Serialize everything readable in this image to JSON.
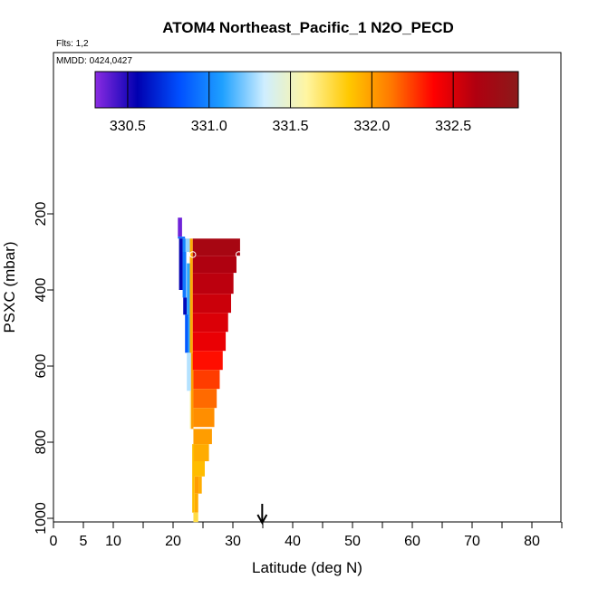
{
  "chart_data": {
    "type": "heatmap",
    "title": "ATOM4 Northeast_Pacific_1 N2O_PECD",
    "flights_text": "Flts: 1,2",
    "mmdd_text": "MMDD: 0424,0427",
    "xlabel": "Latitude (deg N)",
    "ylabel": "PSXC (mbar)",
    "xlim": [
      0,
      85
    ],
    "ylim_inverted": [
      1010,
      50
    ],
    "x_tick_labels": [
      {
        "value": 0,
        "label": "0"
      },
      {
        "value": 5,
        "label": "5"
      },
      {
        "value": 10,
        "label": "10"
      },
      {
        "value": 20,
        "label": "20"
      },
      {
        "value": 30,
        "label": "30"
      },
      {
        "value": 40,
        "label": "40"
      },
      {
        "value": 50,
        "label": "50"
      },
      {
        "value": 60,
        "label": "60"
      },
      {
        "value": 70,
        "label": "70"
      },
      {
        "value": 80,
        "label": "80"
      }
    ],
    "x_minor_ticks": [
      15,
      25,
      35,
      45,
      55,
      65,
      75,
      85
    ],
    "y_ticks": [
      {
        "value": 200,
        "label": "200"
      },
      {
        "value": 400,
        "label": "400"
      },
      {
        "value": 600,
        "label": "600"
      },
      {
        "value": 800,
        "label": "800"
      },
      {
        "value": 1000,
        "label": "1000"
      }
    ],
    "colorbar": {
      "min": 330.3,
      "max": 332.9,
      "stops": [
        "#8a2be2",
        "#0000b0",
        "#0050ff",
        "#1ea0ff",
        "#cfeeff",
        "#fff5a0",
        "#ffc800",
        "#ff7800",
        "#ff0000",
        "#b00010",
        "#8b1a1a"
      ],
      "tick_labels": [
        {
          "value": 330.5,
          "label": "330.5"
        },
        {
          "value": 331.0,
          "label": "331.0"
        },
        {
          "value": 331.5,
          "label": "331.5"
        },
        {
          "value": 332.0,
          "label": "332.0"
        },
        {
          "value": 332.5,
          "label": "332.5"
        }
      ],
      "divisions": [
        330.5,
        331.0,
        331.5,
        332.0,
        332.5
      ]
    },
    "cells": [
      {
        "lat_min": 20.8,
        "lat_max": 21.5,
        "p_top": 210,
        "p_bot": 260,
        "value": 330.35
      },
      {
        "lat_min": 20.8,
        "lat_max": 22.0,
        "p_top": 260,
        "p_bot": 265,
        "value": 330.9
      },
      {
        "lat_min": 21.0,
        "lat_max": 21.6,
        "p_top": 265,
        "p_bot": 400,
        "value": 330.55
      },
      {
        "lat_min": 21.6,
        "lat_max": 22.1,
        "p_top": 265,
        "p_bot": 300,
        "value": 331.0
      },
      {
        "lat_min": 22.1,
        "lat_max": 22.8,
        "p_top": 265,
        "p_bot": 300,
        "value": 331.25
      },
      {
        "lat_min": 21.6,
        "lat_max": 22.2,
        "p_top": 300,
        "p_bot": 420,
        "value": 330.95
      },
      {
        "lat_min": 21.7,
        "lat_max": 22.3,
        "p_top": 420,
        "p_bot": 465,
        "value": 330.6
      },
      {
        "lat_min": 22.3,
        "lat_max": 22.9,
        "p_top": 330,
        "p_bot": 470,
        "value": 331.1
      },
      {
        "lat_min": 22.0,
        "lat_max": 22.5,
        "p_top": 465,
        "p_bot": 565,
        "value": 330.85
      },
      {
        "lat_min": 22.5,
        "lat_max": 23.0,
        "p_top": 470,
        "p_bot": 565,
        "value": 331.1
      },
      {
        "lat_min": 22.3,
        "lat_max": 23.0,
        "p_top": 565,
        "p_bot": 665,
        "value": 331.3
      },
      {
        "lat_min": 22.8,
        "lat_max": 23.4,
        "p_top": 665,
        "p_bot": 765,
        "value": 331.55
      },
      {
        "lat_min": 23.4,
        "lat_max": 26.5,
        "p_top": 805,
        "p_bot": 765,
        "value": 332.0
      },
      {
        "lat_min": 23.2,
        "lat_max": 23.6,
        "p_top": 805,
        "p_bot": 985,
        "value": 331.9
      },
      {
        "lat_min": 23.6,
        "lat_max": 24.3,
        "p_top": 890,
        "p_bot": 935,
        "value": 332.0
      },
      {
        "lat_min": 23.6,
        "lat_max": 24.2,
        "p_top": 935,
        "p_bot": 985,
        "value": 331.95
      },
      {
        "lat_min": 23.4,
        "lat_max": 24.2,
        "p_top": 985,
        "p_bot": 1010,
        "value": 331.75
      },
      {
        "lat_min": 22.8,
        "lat_max": 23.3,
        "p_top": 265,
        "p_bot": 565,
        "value": 331.95
      },
      {
        "lat_min": 23.0,
        "lat_max": 23.4,
        "p_top": 565,
        "p_bot": 765,
        "value": 332.0
      },
      {
        "lat_min": 23.3,
        "lat_max": 31.2,
        "p_top": 265,
        "p_bot": 310,
        "value": 332.7
      },
      {
        "lat_min": 23.3,
        "lat_max": 30.6,
        "p_top": 310,
        "p_bot": 355,
        "value": 332.65
      },
      {
        "lat_min": 23.3,
        "lat_max": 30.1,
        "p_top": 355,
        "p_bot": 410,
        "value": 332.6
      },
      {
        "lat_min": 23.3,
        "lat_max": 29.7,
        "p_top": 410,
        "p_bot": 460,
        "value": 332.55
      },
      {
        "lat_min": 23.3,
        "lat_max": 29.2,
        "p_top": 460,
        "p_bot": 510,
        "value": 332.5
      },
      {
        "lat_min": 23.3,
        "lat_max": 28.8,
        "p_top": 510,
        "p_bot": 560,
        "value": 332.45
      },
      {
        "lat_min": 23.3,
        "lat_max": 28.3,
        "p_top": 560,
        "p_bot": 610,
        "value": 332.35
      },
      {
        "lat_min": 23.4,
        "lat_max": 27.8,
        "p_top": 610,
        "p_bot": 660,
        "value": 332.25
      },
      {
        "lat_min": 23.4,
        "lat_max": 27.3,
        "p_top": 660,
        "p_bot": 710,
        "value": 332.15
      },
      {
        "lat_min": 23.4,
        "lat_max": 26.9,
        "p_top": 710,
        "p_bot": 760,
        "value": 332.05
      },
      {
        "lat_min": 23.5,
        "lat_max": 26.0,
        "p_top": 805,
        "p_bot": 850,
        "value": 331.95
      },
      {
        "lat_min": 23.5,
        "lat_max": 25.3,
        "p_top": 850,
        "p_bot": 890,
        "value": 331.9
      },
      {
        "lat_min": 24.3,
        "lat_max": 24.8,
        "p_top": 890,
        "p_bot": 935,
        "value": 331.95
      }
    ],
    "markers": [
      {
        "lat": 23.3,
        "pressure": 307
      },
      {
        "lat": 31.0,
        "pressure": 307
      }
    ],
    "arrow_latitude": 34.9
  }
}
